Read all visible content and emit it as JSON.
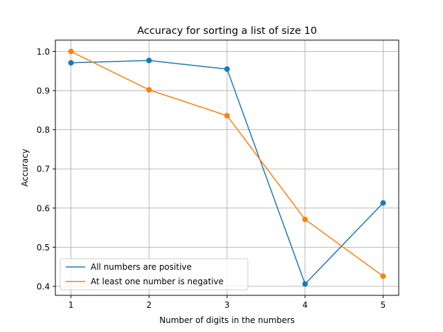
{
  "chart_data": {
    "type": "line",
    "title": "Accuracy for sorting a list of size 10",
    "xlabel": "Number of digits in the numbers",
    "ylabel": "Accuracy",
    "x": [
      1,
      2,
      3,
      4,
      5
    ],
    "xlim": [
      0.8,
      5.2
    ],
    "ylim": [
      0.377,
      1.029
    ],
    "xticks": [
      1,
      2,
      3,
      4,
      5
    ],
    "yticks": [
      0.4,
      0.5,
      0.6,
      0.7,
      0.8,
      0.9,
      1.0
    ],
    "ytick_labels": [
      "0.4",
      "0.5",
      "0.6",
      "0.7",
      "0.8",
      "0.9",
      "1.0"
    ],
    "grid": true,
    "legend_position": "lower-left",
    "markers": true,
    "series": [
      {
        "name": "All numbers are positive",
        "color": "#1f77b4",
        "values": [
          0.971,
          0.977,
          0.955,
          0.406,
          0.613
        ]
      },
      {
        "name": "At least one number is negative",
        "color": "#ff7f0e",
        "values": [
          1.0,
          0.902,
          0.836,
          0.571,
          0.426
        ]
      }
    ]
  }
}
